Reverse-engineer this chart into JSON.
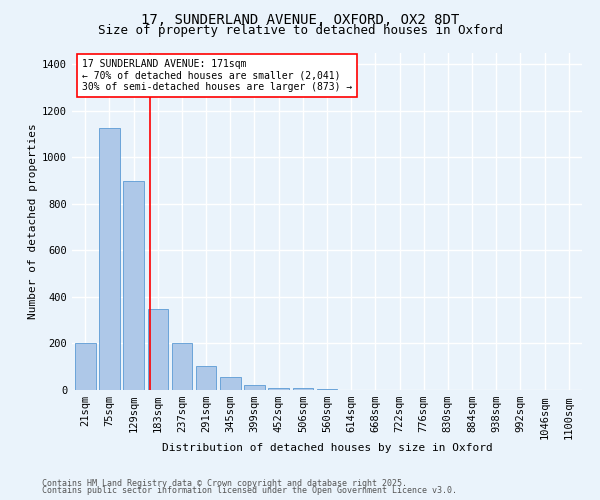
{
  "title_line1": "17, SUNDERLAND AVENUE, OXFORD, OX2 8DT",
  "title_line2": "Size of property relative to detached houses in Oxford",
  "xlabel": "Distribution of detached houses by size in Oxford",
  "ylabel": "Number of detached properties",
  "categories": [
    "21sqm",
    "75sqm",
    "129sqm",
    "183sqm",
    "237sqm",
    "291sqm",
    "345sqm",
    "399sqm",
    "452sqm",
    "506sqm",
    "560sqm",
    "614sqm",
    "668sqm",
    "722sqm",
    "776sqm",
    "830sqm",
    "884sqm",
    "938sqm",
    "992sqm",
    "1046sqm",
    "1100sqm"
  ],
  "values": [
    200,
    1125,
    900,
    350,
    200,
    105,
    55,
    20,
    10,
    8,
    5,
    2,
    1,
    2,
    1,
    1,
    1,
    0,
    0,
    0,
    0
  ],
  "bar_color": "#aec8e8",
  "bar_edge_color": "#5b9bd5",
  "red_line_x": 2.68,
  "annotation_text": "17 SUNDERLAND AVENUE: 171sqm\n← 70% of detached houses are smaller (2,041)\n30% of semi-detached houses are larger (873) →",
  "annotation_box_color": "white",
  "annotation_box_edge": "red",
  "ylim": [
    0,
    1450
  ],
  "yticks": [
    0,
    200,
    400,
    600,
    800,
    1000,
    1200,
    1400
  ],
  "footer_line1": "Contains HM Land Registry data © Crown copyright and database right 2025.",
  "footer_line2": "Contains public sector information licensed under the Open Government Licence v3.0.",
  "background_color": "#eaf3fb",
  "grid_color": "white",
  "title_fontsize": 10,
  "subtitle_fontsize": 9,
  "axis_label_fontsize": 8,
  "tick_fontsize": 7.5,
  "footer_fontsize": 6,
  "annot_fontsize": 7
}
